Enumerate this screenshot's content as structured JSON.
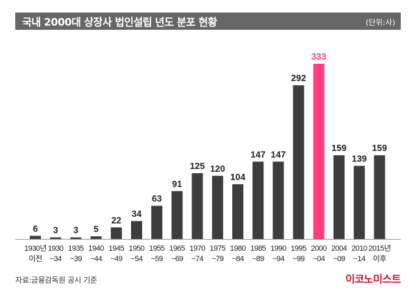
{
  "chart_data": {
    "type": "bar",
    "title": "국내 2000대 상장사 법인설립 년도 분포 현황",
    "unit": "(단위:사)",
    "categories": [
      [
        "1930년",
        "이전"
      ],
      [
        "1930",
        "~34"
      ],
      [
        "1935",
        "~39"
      ],
      [
        "1940",
        "~44"
      ],
      [
        "1945",
        "~49"
      ],
      [
        "1950",
        "~54"
      ],
      [
        "1955",
        "~59"
      ],
      [
        "1965",
        "~69"
      ],
      [
        "1970",
        "~74"
      ],
      [
        "1975",
        "~79"
      ],
      [
        "1980",
        "~84"
      ],
      [
        "1985",
        "~89"
      ],
      [
        "1990",
        "~94"
      ],
      [
        "1995",
        "~99"
      ],
      [
        "2000",
        "~04"
      ],
      [
        "2004",
        "~09"
      ],
      [
        "2010",
        "~14"
      ],
      [
        "2015년",
        "이후"
      ]
    ],
    "values": [
      6,
      3,
      3,
      5,
      22,
      34,
      63,
      91,
      125,
      120,
      104,
      147,
      147,
      292,
      333,
      159,
      139,
      159
    ],
    "highlight_index": 14,
    "ylim": [
      0,
      333
    ],
    "colors": {
      "bar": "#3d3d3d",
      "highlight": "#ff3d7f"
    }
  },
  "source": "자료:금융감독원 공시 기준",
  "logo": "이코노미스트"
}
